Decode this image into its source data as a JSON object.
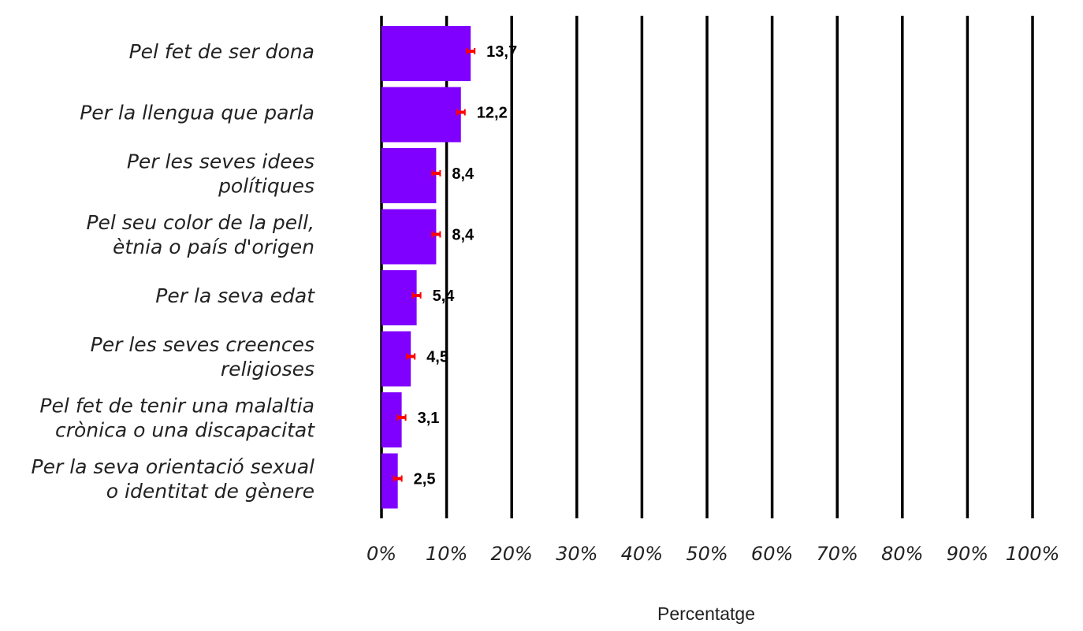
{
  "chart_data": {
    "type": "bar",
    "orientation": "horizontal",
    "categories": [
      [
        "Pel fet de ser dona"
      ],
      [
        "Per la llengua que parla"
      ],
      [
        "Per les seves idees",
        "polítiques"
      ],
      [
        "Pel seu color de la pell,",
        "ètnia o país d'origen"
      ],
      [
        "Per la seva edat"
      ],
      [
        "Per les seves creences",
        "religioses"
      ],
      [
        "Pel fet de tenir una malaltia",
        "crònica o una discapacitat"
      ],
      [
        "Per la seva orientació sexual",
        "o identitat de gènere"
      ]
    ],
    "values": [
      13.7,
      12.2,
      8.4,
      8.4,
      5.4,
      4.5,
      3.1,
      2.5
    ],
    "value_labels": [
      "13,7",
      "12,2",
      "8,4",
      "8,4",
      "5,4",
      "4,5",
      "3,1",
      "2,5"
    ],
    "xlim": [
      0,
      100
    ],
    "xticks": [
      0,
      10,
      20,
      30,
      40,
      50,
      60,
      70,
      80,
      90,
      100
    ],
    "xtick_labels": [
      "0%",
      "10%",
      "20%",
      "30%",
      "40%",
      "50%",
      "60%",
      "70%",
      "80%",
      "90%",
      "100%"
    ],
    "xlabel": "Percentatge",
    "ylabel": "",
    "title": "",
    "grid": "vertical",
    "error_bars": true,
    "colors": {
      "bar": "#8000ff",
      "error": "#ff0000",
      "grid": "#000000"
    }
  }
}
